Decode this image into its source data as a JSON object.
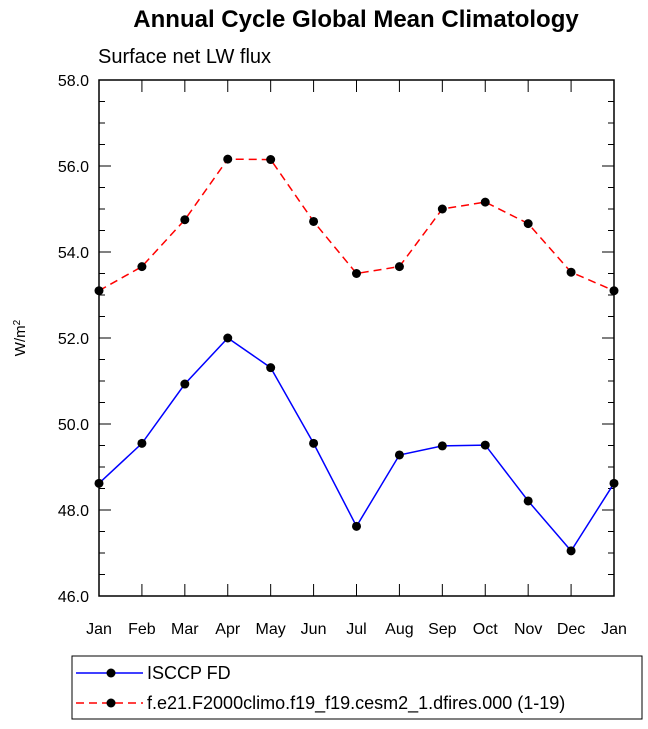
{
  "chart_data": {
    "type": "line",
    "title": "Annual Cycle Global Mean Climatology",
    "subtitle": "Surface net LW flux",
    "xlabel": "",
    "ylabel": "W/m",
    "ylabel_sup": "2",
    "ylim": [
      46.0,
      58.0
    ],
    "yticks": [
      "46.0",
      "48.0",
      "50.0",
      "52.0",
      "54.0",
      "56.0",
      "58.0"
    ],
    "categories": [
      "Jan",
      "Feb",
      "Mar",
      "Apr",
      "May",
      "Jun",
      "Jul",
      "Aug",
      "Sep",
      "Oct",
      "Nov",
      "Dec",
      "Jan"
    ],
    "series": [
      {
        "name": "ISCCP FD",
        "color": "#0000ff",
        "style": "solid",
        "values": [
          48.62,
          49.55,
          50.93,
          52.0,
          51.31,
          49.55,
          47.62,
          49.28,
          49.49,
          49.51,
          48.21,
          47.05,
          48.62
        ]
      },
      {
        "name": "f.e21.F2000climo.f19_f19.cesm2_1.dfires.000 (1-19)",
        "color": "#ff0000",
        "style": "dashed",
        "values": [
          53.1,
          53.66,
          54.75,
          56.16,
          56.15,
          54.71,
          53.5,
          53.66,
          55.0,
          55.16,
          54.66,
          53.53,
          53.1
        ]
      }
    ],
    "legend_position": "bottom-left"
  }
}
